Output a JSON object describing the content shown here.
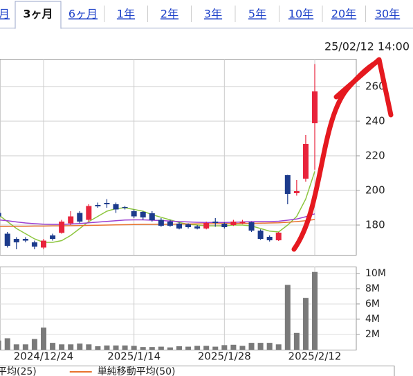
{
  "tabs": {
    "items": [
      "月",
      "3ヶ月",
      "6ヶ月",
      "1年",
      "2年",
      "3年",
      "5年",
      "10年",
      "20年",
      "30年"
    ],
    "selected": 1
  },
  "timestamp": "25/02/12 14:00",
  "chart_data": [
    {
      "type": "candlestick",
      "open": [
        187,
        175,
        172,
        172,
        170,
        167,
        174,
        175.5,
        181,
        187,
        183,
        191.6,
        192.8,
        192,
        190.4,
        188,
        187.6,
        186.8,
        183,
        182,
        180.8,
        180.4,
        179.2,
        178,
        182,
        180.8,
        180,
        181,
        181.6,
        176.8,
        173.2,
        171.2,
        208.8,
        198.4,
        206.8,
        238.8
      ],
      "high": [
        188,
        176,
        173,
        173,
        171,
        172,
        175,
        183,
        188,
        188,
        192,
        193,
        195,
        193,
        191,
        189,
        188,
        188,
        184,
        183,
        181.5,
        181,
        180,
        182,
        184,
        181.5,
        183,
        183,
        182,
        177.5,
        174,
        176,
        209,
        206,
        232,
        273
      ],
      "low": [
        184,
        167,
        166,
        170,
        166,
        166,
        171,
        175,
        180,
        181,
        182,
        190,
        190,
        187,
        189,
        184,
        183,
        182,
        179,
        179,
        177.5,
        178,
        177.5,
        177.5,
        179,
        178,
        179.5,
        180.5,
        176,
        171.5,
        170.5,
        170.8,
        192,
        197,
        205,
        212
      ],
      "close": [
        185,
        168,
        170,
        171,
        167.5,
        171,
        172,
        182,
        185,
        182,
        191,
        190.8,
        192,
        189,
        190,
        185,
        184.4,
        182.8,
        179.6,
        179.6,
        178,
        178.8,
        178,
        181.2,
        181.2,
        178.8,
        182,
        181.8,
        176.8,
        172,
        171.2,
        175.6,
        198,
        199.6,
        226.8,
        257.2
      ],
      "up_color": "#e8243c",
      "down_color": "#1c3b8c",
      "series": [
        {
          "color": "#8dc63f",
          "values": [
            186,
            182,
            178,
            175,
            172,
            170,
            170,
            171,
            174,
            178,
            182,
            185,
            188,
            189.5,
            190,
            189,
            188,
            186,
            184.5,
            183,
            181.5,
            180.5,
            180,
            179.5,
            179.5,
            179.5,
            180,
            180,
            179.5,
            178,
            176.5,
            176,
            180,
            185,
            195,
            211
          ]
        },
        {
          "name": "平均(25)",
          "color": "#9b3fd0",
          "values": [
            183,
            182.5,
            181.8,
            181.2,
            180.8,
            180.5,
            180.4,
            180.4,
            180.6,
            180.9,
            181.3,
            181.7,
            182.1,
            182.5,
            182.9,
            183,
            183,
            182.8,
            182.6,
            182.3,
            182,
            181.8,
            181.6,
            181.5,
            181.5,
            181.5,
            181.6,
            181.8,
            182,
            182,
            182,
            182.2,
            182.8,
            183.5,
            184.8,
            186.5
          ]
        },
        {
          "name": "単純移動平均(50)",
          "color": "#e8722c",
          "values": [
            179.2,
            179.2,
            179.3,
            179.3,
            179.4,
            179.4,
            179.5,
            179.5,
            179.6,
            179.7,
            179.8,
            179.9,
            180,
            180.1,
            180.2,
            180.3,
            180.4,
            180.4,
            180.5,
            180.5,
            180.6,
            180.6,
            180.7,
            180.7,
            180.8,
            180.8,
            180.9,
            181,
            181,
            181.1,
            181.2,
            181.3,
            181.6,
            182,
            182.5,
            183.2
          ]
        }
      ],
      "ylim": [
        162.8,
        276
      ],
      "yticks": [
        180,
        200,
        220,
        240,
        260
      ],
      "grid": true
    },
    {
      "type": "bar",
      "categories": [
        null,
        null,
        null,
        null,
        null,
        "2024/12/24",
        null,
        null,
        null,
        null,
        null,
        null,
        null,
        null,
        null,
        "2025/1/14",
        null,
        null,
        null,
        null,
        null,
        null,
        null,
        null,
        null,
        "2025/1/28",
        null,
        null,
        null,
        null,
        null,
        null,
        null,
        null,
        null,
        "2025/2/12"
      ],
      "values": [
        1200000,
        1500000,
        700000,
        700000,
        1400000,
        2900000,
        900000,
        700000,
        700000,
        800000,
        700000,
        450000,
        550000,
        550000,
        550000,
        500000,
        350000,
        350000,
        400000,
        300000,
        450000,
        400000,
        500000,
        500000,
        400000,
        600000,
        650000,
        500000,
        900000,
        900000,
        900000,
        700000,
        8500000,
        2200000,
        6800000,
        10200000
      ],
      "color": "#7a7a7a",
      "ylim": [
        0,
        10900000
      ],
      "yticks": [
        {
          "value": 2000000,
          "label": "2M"
        },
        {
          "value": 4000000,
          "label": "4M"
        },
        {
          "value": 6000000,
          "label": "6M"
        },
        {
          "value": 8000000,
          "label": "8M"
        },
        {
          "value": 10000000,
          "label": "10M"
        }
      ],
      "grid": true
    }
  ]
}
